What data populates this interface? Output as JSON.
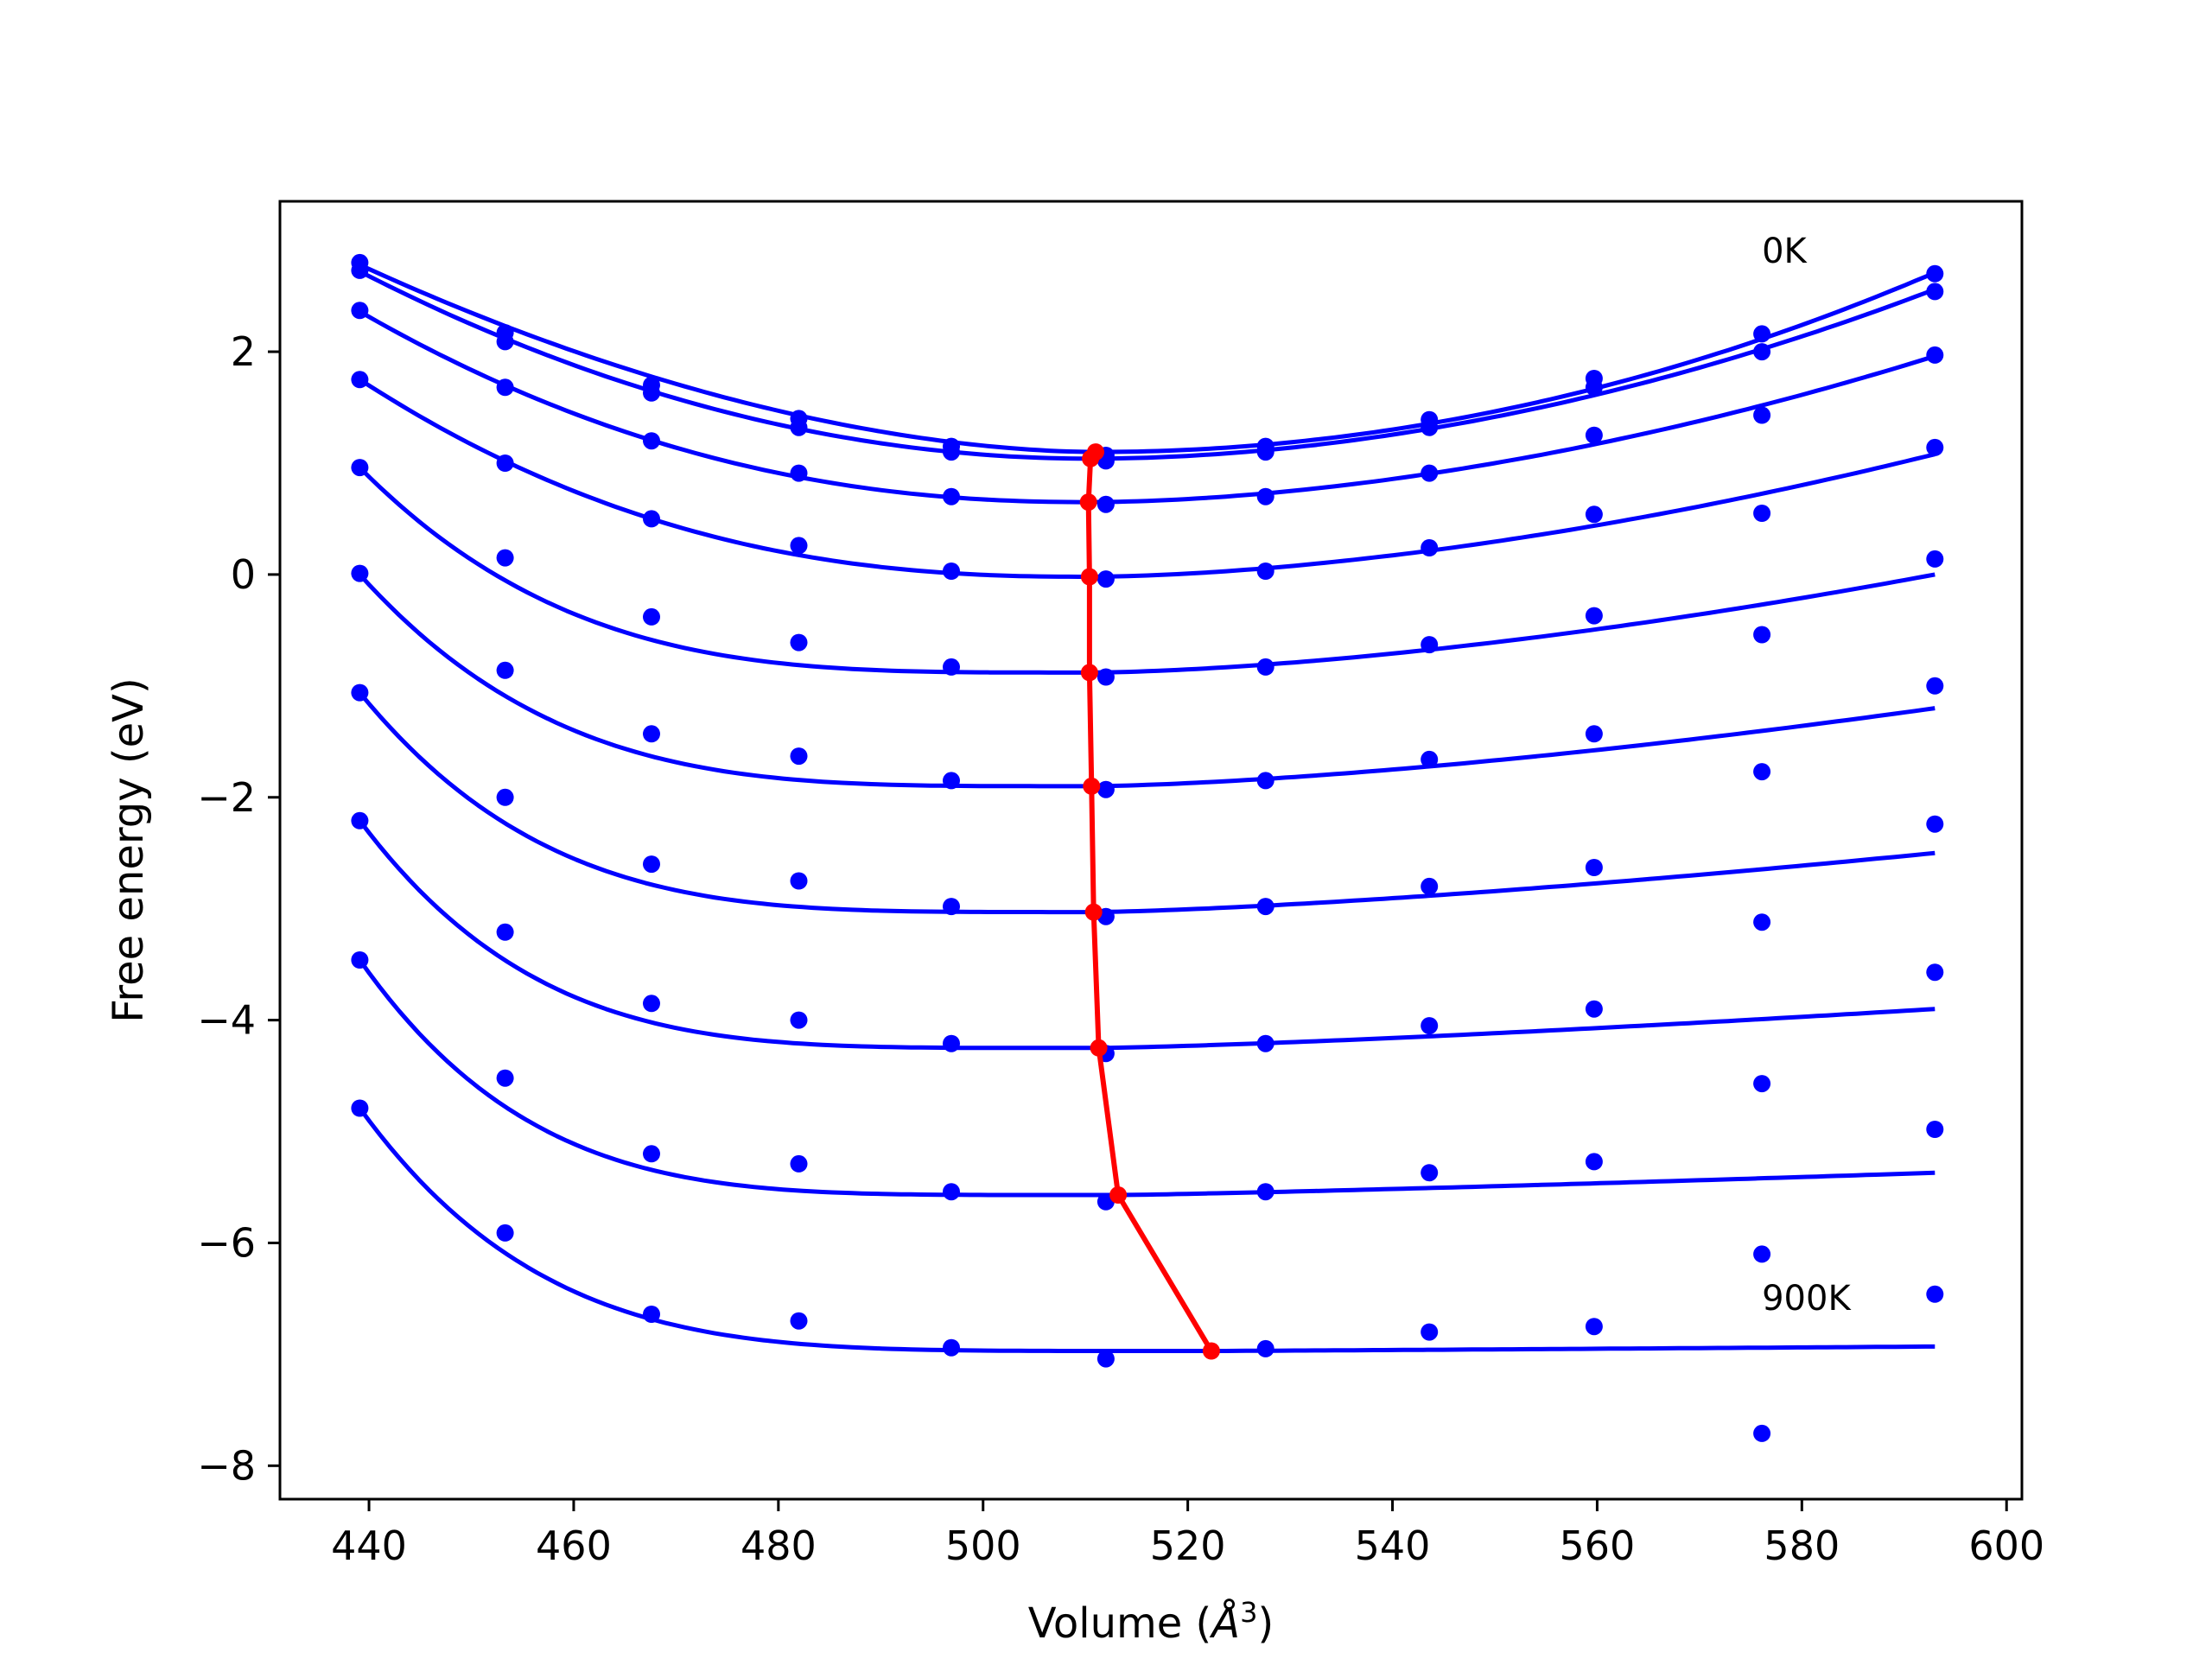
{
  "chart_data": {
    "type": "scatter",
    "title": "",
    "xlabel": "Volume (Å³)",
    "xlabel_main": "Volume (",
    "xlabel_unit": "Å",
    "xlabel_exp": "3",
    "xlabel_close": ")",
    "ylabel": "Free energy (eV)",
    "xlim": [
      431.3,
      601.5
    ],
    "ylim": [
      -8.3,
      3.35
    ],
    "xticks": [
      440,
      460,
      480,
      500,
      520,
      540,
      560,
      580,
      600
    ],
    "xtick_labels": [
      "440",
      "460",
      "480",
      "500",
      "520",
      "540",
      "560",
      "580",
      "600"
    ],
    "yticks": [
      -8,
      -6,
      -4,
      -2,
      0,
      2
    ],
    "ytick_labels": [
      "−8",
      "−6",
      "−4",
      "−2",
      "0",
      "2"
    ],
    "grid": false,
    "annotations": [
      {
        "text": "0K",
        "x": 576.1,
        "y": 2.8
      },
      {
        "text": "900K",
        "x": 576.1,
        "y": -6.6
      }
    ],
    "colors": {
      "series": "#0000ff",
      "minimum_path": "#ff0000",
      "axes": "#000000"
    },
    "volumes": [
      439.1,
      453.3,
      467.6,
      482.0,
      496.9,
      512.0,
      527.6,
      543.6,
      559.7,
      576.1,
      593.0
    ],
    "series": [
      {
        "points": [
          2.8,
          2.17,
          1.7,
          1.4,
          1.15,
          1.07,
          1.15,
          1.39,
          1.76,
          2.16,
          2.7
        ],
        "fit": {
          "min_x": 511.0,
          "min_y": 1.1,
          "left_y": 2.78,
          "right_y": 2.71
        }
      },
      {
        "points": [
          2.73,
          2.09,
          1.63,
          1.32,
          1.1,
          1.02,
          1.1,
          1.32,
          1.68,
          2.0,
          2.54
        ],
        "fit": {
          "min_x": 510.5,
          "min_y": 1.04,
          "left_y": 2.72,
          "right_y": 2.56
        }
      },
      {
        "points": [
          2.37,
          1.68,
          1.2,
          0.91,
          0.7,
          0.63,
          0.7,
          0.91,
          1.25,
          1.43,
          1.97
        ],
        "fit": {
          "min_x": 510.3,
          "min_y": 0.65,
          "left_y": 2.36,
          "right_y": 1.96
        }
      },
      {
        "points": [
          1.75,
          1.0,
          0.5,
          0.26,
          0.03,
          -0.04,
          0.03,
          0.24,
          0.54,
          0.55,
          1.14
        ],
        "fit": {
          "min_x": 510.4,
          "min_y": -0.02,
          "left_y": 1.75,
          "right_y": 1.08
        }
      },
      {
        "points": [
          0.96,
          0.15,
          -0.38,
          -0.61,
          -0.83,
          -0.92,
          -0.83,
          -0.63,
          -0.37,
          -0.54,
          0.14
        ],
        "fit": {
          "min_x": 510.4,
          "min_y": -0.88,
          "left_y": 0.96,
          "right_y": 0.0
        }
      },
      {
        "points": [
          0.01,
          -0.86,
          -1.43,
          -1.63,
          -1.85,
          -1.93,
          -1.85,
          -1.66,
          -1.43,
          -1.77,
          -1.0
        ],
        "fit": {
          "min_x": 510.6,
          "min_y": -1.9,
          "left_y": 0.0,
          "right_y": -1.2
        }
      },
      {
        "points": [
          -1.06,
          -2.0,
          -2.6,
          -2.75,
          -2.98,
          -3.07,
          -2.98,
          -2.8,
          -2.63,
          -3.12,
          -2.24
        ],
        "fit": {
          "min_x": 510.8,
          "min_y": -3.03,
          "left_y": -1.06,
          "right_y": -2.5
        }
      },
      {
        "points": [
          -2.21,
          -3.21,
          -3.85,
          -4.0,
          -4.21,
          -4.3,
          -4.21,
          -4.05,
          -3.9,
          -4.57,
          -3.57
        ],
        "fit": {
          "min_x": 511.3,
          "min_y": -4.25,
          "left_y": -2.21,
          "right_y": -3.9
        }
      },
      {
        "points": [
          -3.46,
          -4.52,
          -5.2,
          -5.29,
          -5.54,
          -5.63,
          -5.54,
          -5.37,
          -5.27,
          -6.1,
          -4.98
        ],
        "fit": {
          "min_x": 513.2,
          "min_y": -5.57,
          "left_y": -3.46,
          "right_y": -5.37
        }
      },
      {
        "points": [
          -4.79,
          -5.91,
          -6.64,
          -6.7,
          -6.94,
          -7.04,
          -6.95,
          -6.8,
          -6.75,
          -7.71,
          -6.46
        ],
        "fit": {
          "min_x": 522.3,
          "min_y": -6.97,
          "left_y": -4.79,
          "right_y": -6.93
        }
      }
    ],
    "minimum_path": {
      "x": [
        511.0,
        510.5,
        510.3,
        510.4,
        510.4,
        510.6,
        510.8,
        511.3,
        513.2,
        522.3
      ],
      "y": [
        1.1,
        1.04,
        0.65,
        -0.02,
        -0.88,
        -1.9,
        -3.03,
        -4.25,
        -5.57,
        -6.97
      ]
    }
  }
}
